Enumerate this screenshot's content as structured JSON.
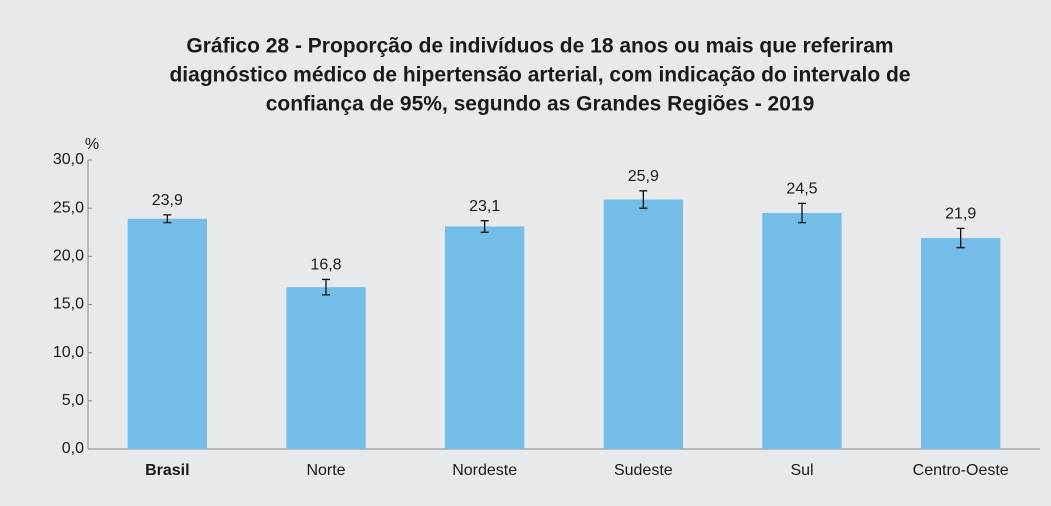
{
  "chart_data": {
    "type": "bar",
    "title": [
      "Gráfico 28 - Proporção de indivíduos de 18 anos ou mais que referiram",
      "diagnóstico médico de hipertensão arterial, com indicação do intervalo de",
      "confiança de 95%, segundo as Grandes Regiões - 2019"
    ],
    "y_label": "%",
    "categories": [
      "Brasil",
      "Norte",
      "Nordeste",
      "Sudeste",
      "Sul",
      "Centro-Oeste"
    ],
    "values": [
      23.9,
      16.8,
      23.1,
      25.9,
      24.5,
      21.9
    ],
    "value_labels": [
      "23,9",
      "16,8",
      "23,1",
      "25,9",
      "24,5",
      "21,9"
    ],
    "errors": [
      0.4,
      0.8,
      0.6,
      0.9,
      1.0,
      1.0
    ],
    "color": "#74bde8",
    "highlight_category": 0,
    "ylim": [
      0,
      30
    ],
    "yticks": [
      {
        "value": 0,
        "label": "0,0"
      },
      {
        "value": 5,
        "label": "5,0"
      },
      {
        "value": 10,
        "label": "10,0"
      },
      {
        "value": 15,
        "label": "15,0"
      },
      {
        "value": 20,
        "label": "20,0"
      },
      {
        "value": 25,
        "label": "25,0"
      },
      {
        "value": 30,
        "label": "30,0"
      }
    ],
    "grid": false
  }
}
